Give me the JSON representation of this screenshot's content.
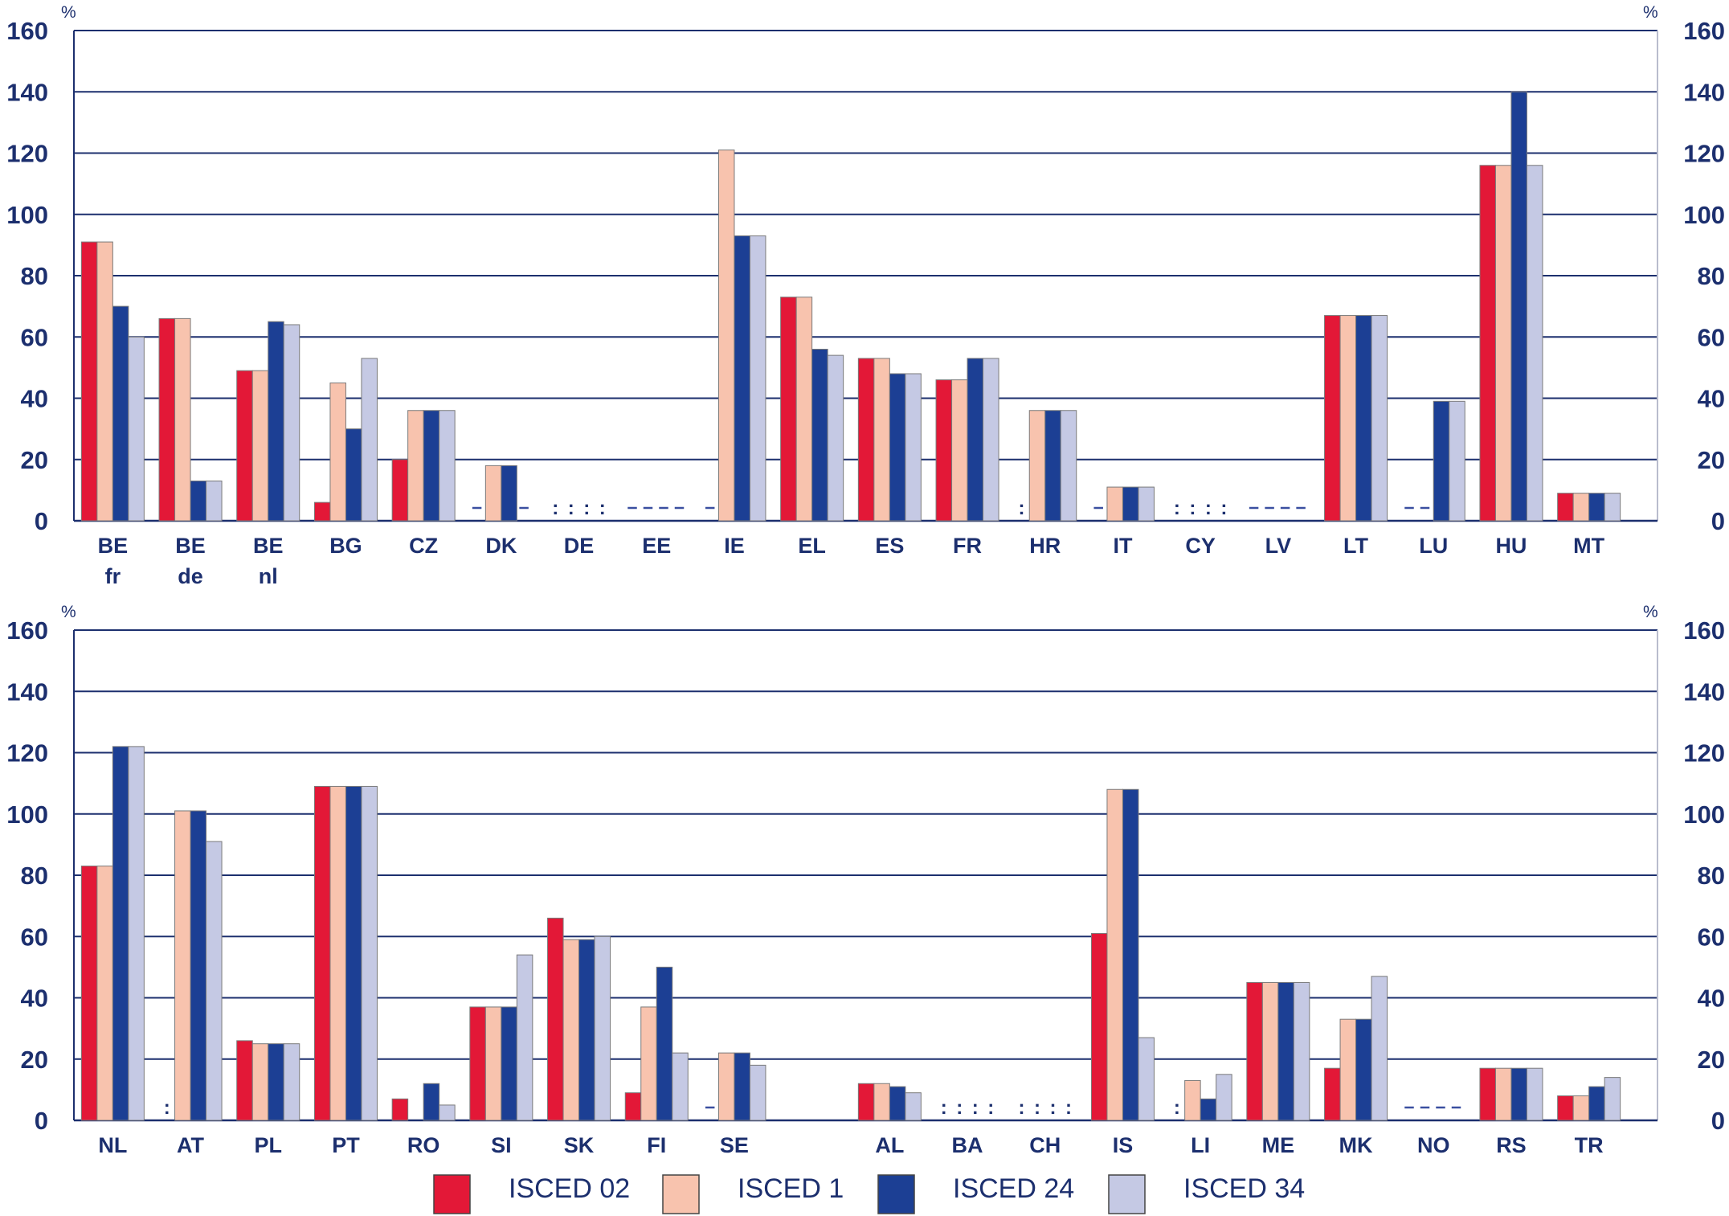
{
  "chart_data": [
    {
      "type": "bar",
      "unit_left": "%",
      "unit_right": "%",
      "ylim": [
        0,
        160
      ],
      "yticks": [
        "0",
        "20",
        "40",
        "60",
        "80",
        "100",
        "120",
        "140",
        "160"
      ],
      "grid": true,
      "legend_placement": "bottom",
      "categories": [
        {
          "label": "BE",
          "sub": "fr",
          "values": [
            91,
            91,
            70,
            60
          ]
        },
        {
          "label": "BE",
          "sub": "de",
          "values": [
            66,
            66,
            13,
            13
          ]
        },
        {
          "label": "BE",
          "sub": "nl",
          "values": [
            49,
            49,
            65,
            64
          ]
        },
        {
          "label": "BG",
          "sub": "",
          "values": [
            6,
            45,
            30,
            53
          ]
        },
        {
          "label": "CZ",
          "sub": "",
          "values": [
            20,
            36,
            36,
            36
          ]
        },
        {
          "label": "DK",
          "sub": "",
          "values": [
            "-",
            18,
            18,
            "-"
          ]
        },
        {
          "label": "DE",
          "sub": "",
          "values": [
            ":",
            ":",
            ":",
            ":"
          ]
        },
        {
          "label": "EE",
          "sub": "",
          "values": [
            "-",
            "-",
            "-",
            "-"
          ]
        },
        {
          "label": "IE",
          "sub": "",
          "values": [
            "-",
            121,
            93,
            93
          ]
        },
        {
          "label": "EL",
          "sub": "",
          "values": [
            73,
            73,
            56,
            54
          ]
        },
        {
          "label": "ES",
          "sub": "",
          "values": [
            53,
            53,
            48,
            48
          ]
        },
        {
          "label": "FR",
          "sub": "",
          "values": [
            46,
            46,
            53,
            53
          ]
        },
        {
          "label": "HR",
          "sub": "",
          "values": [
            ":",
            36,
            36,
            36
          ]
        },
        {
          "label": "IT",
          "sub": "",
          "values": [
            "-",
            11,
            11,
            11
          ]
        },
        {
          "label": "CY",
          "sub": "",
          "values": [
            ":",
            ":",
            ":",
            ":"
          ]
        },
        {
          "label": "LV",
          "sub": "",
          "values": [
            "-",
            "-",
            "-",
            "-"
          ]
        },
        {
          "label": "LT",
          "sub": "",
          "values": [
            67,
            67,
            67,
            67
          ]
        },
        {
          "label": "LU",
          "sub": "",
          "values": [
            "-",
            "-",
            39,
            39
          ]
        },
        {
          "label": "HU",
          "sub": "",
          "values": [
            116,
            116,
            140,
            116
          ]
        },
        {
          "label": "MT",
          "sub": "",
          "values": [
            9,
            9,
            9,
            9
          ]
        }
      ]
    },
    {
      "type": "bar",
      "unit_left": "%",
      "unit_right": "%",
      "ylim": [
        0,
        160
      ],
      "yticks": [
        "0",
        "20",
        "40",
        "60",
        "80",
        "100",
        "120",
        "140",
        "160"
      ],
      "grid": true,
      "legend_placement": "bottom",
      "categories": [
        {
          "label": "NL",
          "sub": "",
          "values": [
            83,
            83,
            122,
            122
          ]
        },
        {
          "label": "AT",
          "sub": "",
          "values": [
            ":",
            101,
            101,
            91
          ]
        },
        {
          "label": "PL",
          "sub": "",
          "values": [
            26,
            25,
            25,
            25
          ]
        },
        {
          "label": "PT",
          "sub": "",
          "values": [
            109,
            109,
            109,
            109
          ]
        },
        {
          "label": "RO",
          "sub": "",
          "values": [
            7,
            null,
            12,
            5
          ]
        },
        {
          "label": "SI",
          "sub": "",
          "values": [
            37,
            37,
            37,
            54
          ]
        },
        {
          "label": "SK",
          "sub": "",
          "values": [
            66,
            59,
            59,
            60
          ]
        },
        {
          "label": "FI",
          "sub": "",
          "values": [
            9,
            37,
            50,
            22
          ]
        },
        {
          "label": "SE",
          "sub": "",
          "values": [
            "-",
            22,
            22,
            18
          ]
        },
        {
          "label": "",
          "sub": "",
          "gap": true,
          "values": [
            null,
            null,
            null,
            null
          ]
        },
        {
          "label": "AL",
          "sub": "",
          "values": [
            12,
            12,
            11,
            9
          ]
        },
        {
          "label": "BA",
          "sub": "",
          "values": [
            ":",
            ":",
            ":",
            ":"
          ]
        },
        {
          "label": "CH",
          "sub": "",
          "values": [
            ":",
            ":",
            ":",
            ":"
          ]
        },
        {
          "label": "IS",
          "sub": "",
          "values": [
            61,
            108,
            108,
            27
          ]
        },
        {
          "label": "LI",
          "sub": "",
          "values": [
            ":",
            13,
            7,
            15
          ]
        },
        {
          "label": "ME",
          "sub": "",
          "values": [
            45,
            45,
            45,
            45
          ]
        },
        {
          "label": "MK",
          "sub": "",
          "values": [
            17,
            33,
            33,
            47
          ]
        },
        {
          "label": "NO",
          "sub": "",
          "values": [
            "-",
            "-",
            "-",
            "-"
          ]
        },
        {
          "label": "RS",
          "sub": "",
          "values": [
            17,
            17,
            17,
            17
          ]
        },
        {
          "label": "TR",
          "sub": "",
          "values": [
            8,
            8,
            11,
            14
          ]
        }
      ]
    }
  ],
  "legend": {
    "items": [
      {
        "name": "ISCED 02",
        "color": "#e31837"
      },
      {
        "name": "ISCED 1",
        "color": "#f8c3ae"
      },
      {
        "name": "ISCED 24",
        "color": "#1c3f94"
      },
      {
        "name": "ISCED 34",
        "color": "#c5c9e4"
      }
    ]
  },
  "colors": {
    "axis": "#1c2f6e",
    "grid": "#1c2f6e",
    "bar_outline": "#7a7a7a",
    "missing_marker": "#3a4fa0"
  }
}
